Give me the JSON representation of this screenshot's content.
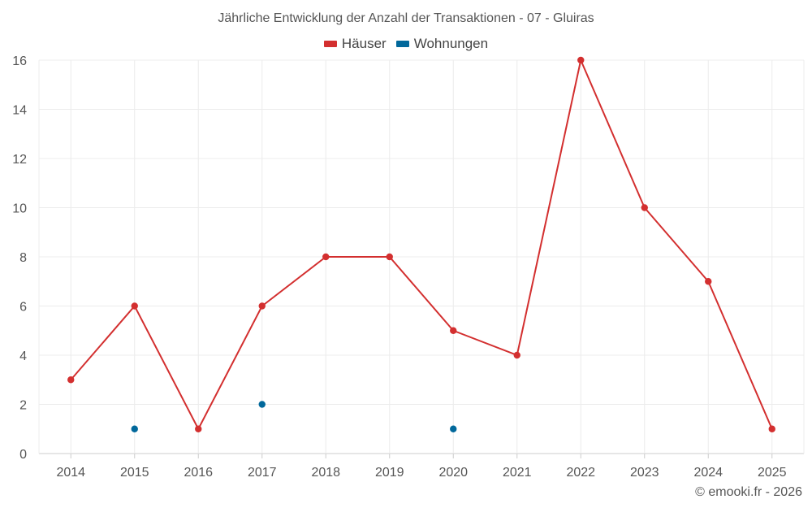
{
  "chart_data": {
    "type": "line",
    "title": "Jährliche Entwicklung der Anzahl der Transaktionen - 07 - Gluiras",
    "categories": [
      "2014",
      "2015",
      "2016",
      "2017",
      "2018",
      "2019",
      "2020",
      "2021",
      "2022",
      "2023",
      "2024",
      "2025"
    ],
    "ylim": [
      0,
      16
    ],
    "yticks": [
      0,
      2,
      4,
      6,
      8,
      10,
      12,
      14,
      16
    ],
    "grid": true,
    "legend_position": "top-center",
    "series": [
      {
        "name": "Häuser",
        "color": "#d32f2f",
        "values": [
          3,
          6,
          1,
          6,
          8,
          8,
          5,
          4,
          16,
          10,
          7,
          1
        ]
      },
      {
        "name": "Wohnungen",
        "color": "#01689b",
        "values": [
          null,
          1,
          null,
          2,
          null,
          null,
          1,
          null,
          null,
          null,
          null,
          null
        ]
      }
    ]
  },
  "footer": "© emooki.fr - 2026"
}
